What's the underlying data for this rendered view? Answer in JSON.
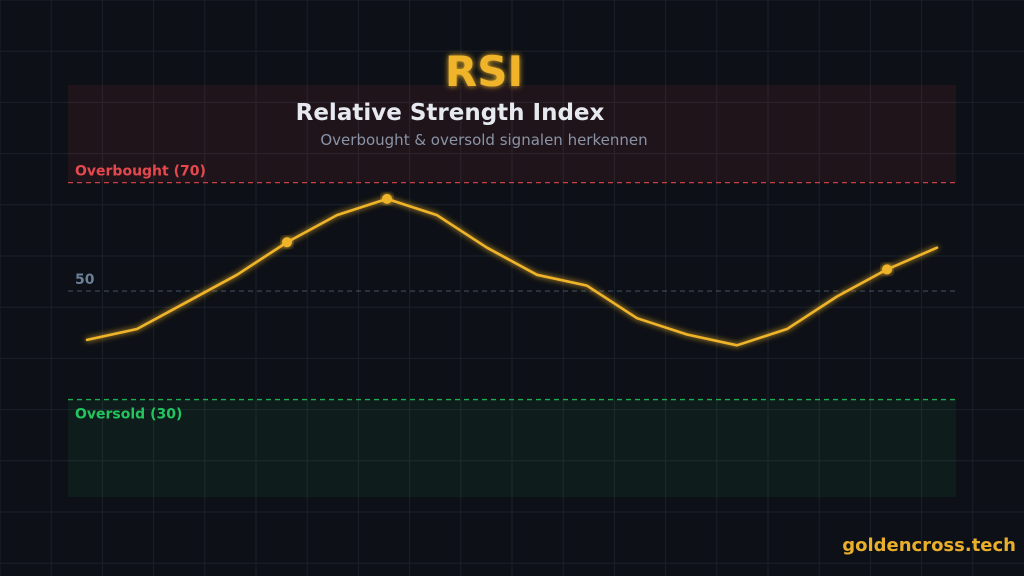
{
  "header": {
    "badge": "RSI",
    "title": "Relative Strength Index",
    "subtitle": "Overbought & oversold signalen herkennen"
  },
  "brand": {
    "text": "goldencross.tech"
  },
  "colors": {
    "background": "#0d1016",
    "grid": "#1b212b",
    "line": "#f0b429",
    "overbought": "#e5484d",
    "oversold": "#22c55e",
    "midline": "#6b7f99",
    "title": "#e6e9ef",
    "subtitle": "#8a94a6"
  },
  "chart_data": {
    "type": "line",
    "ylim": [
      10,
      88
    ],
    "x": [
      1,
      2,
      3,
      4,
      5,
      6,
      7,
      8,
      9,
      10,
      11,
      12,
      13,
      14,
      15,
      16,
      17,
      18
    ],
    "series": [
      {
        "values": [
          41,
          43,
          48,
          53,
          59,
          64,
          67,
          64,
          58,
          53,
          51,
          45,
          42,
          40,
          43,
          49,
          54,
          58
        ],
        "highlighted_x": [
          5,
          7,
          17
        ]
      }
    ],
    "reference_lines": [
      {
        "value": 70,
        "label": "Overbought (70)",
        "kind": "overbought"
      },
      {
        "value": 50,
        "label": "50",
        "kind": "mid"
      },
      {
        "value": 30,
        "label": "Oversold (30)",
        "kind": "oversold"
      }
    ],
    "zones": [
      {
        "from": 70,
        "to": 88,
        "kind": "overbought"
      },
      {
        "from": 12,
        "to": 30,
        "kind": "oversold"
      }
    ],
    "grid": true
  }
}
